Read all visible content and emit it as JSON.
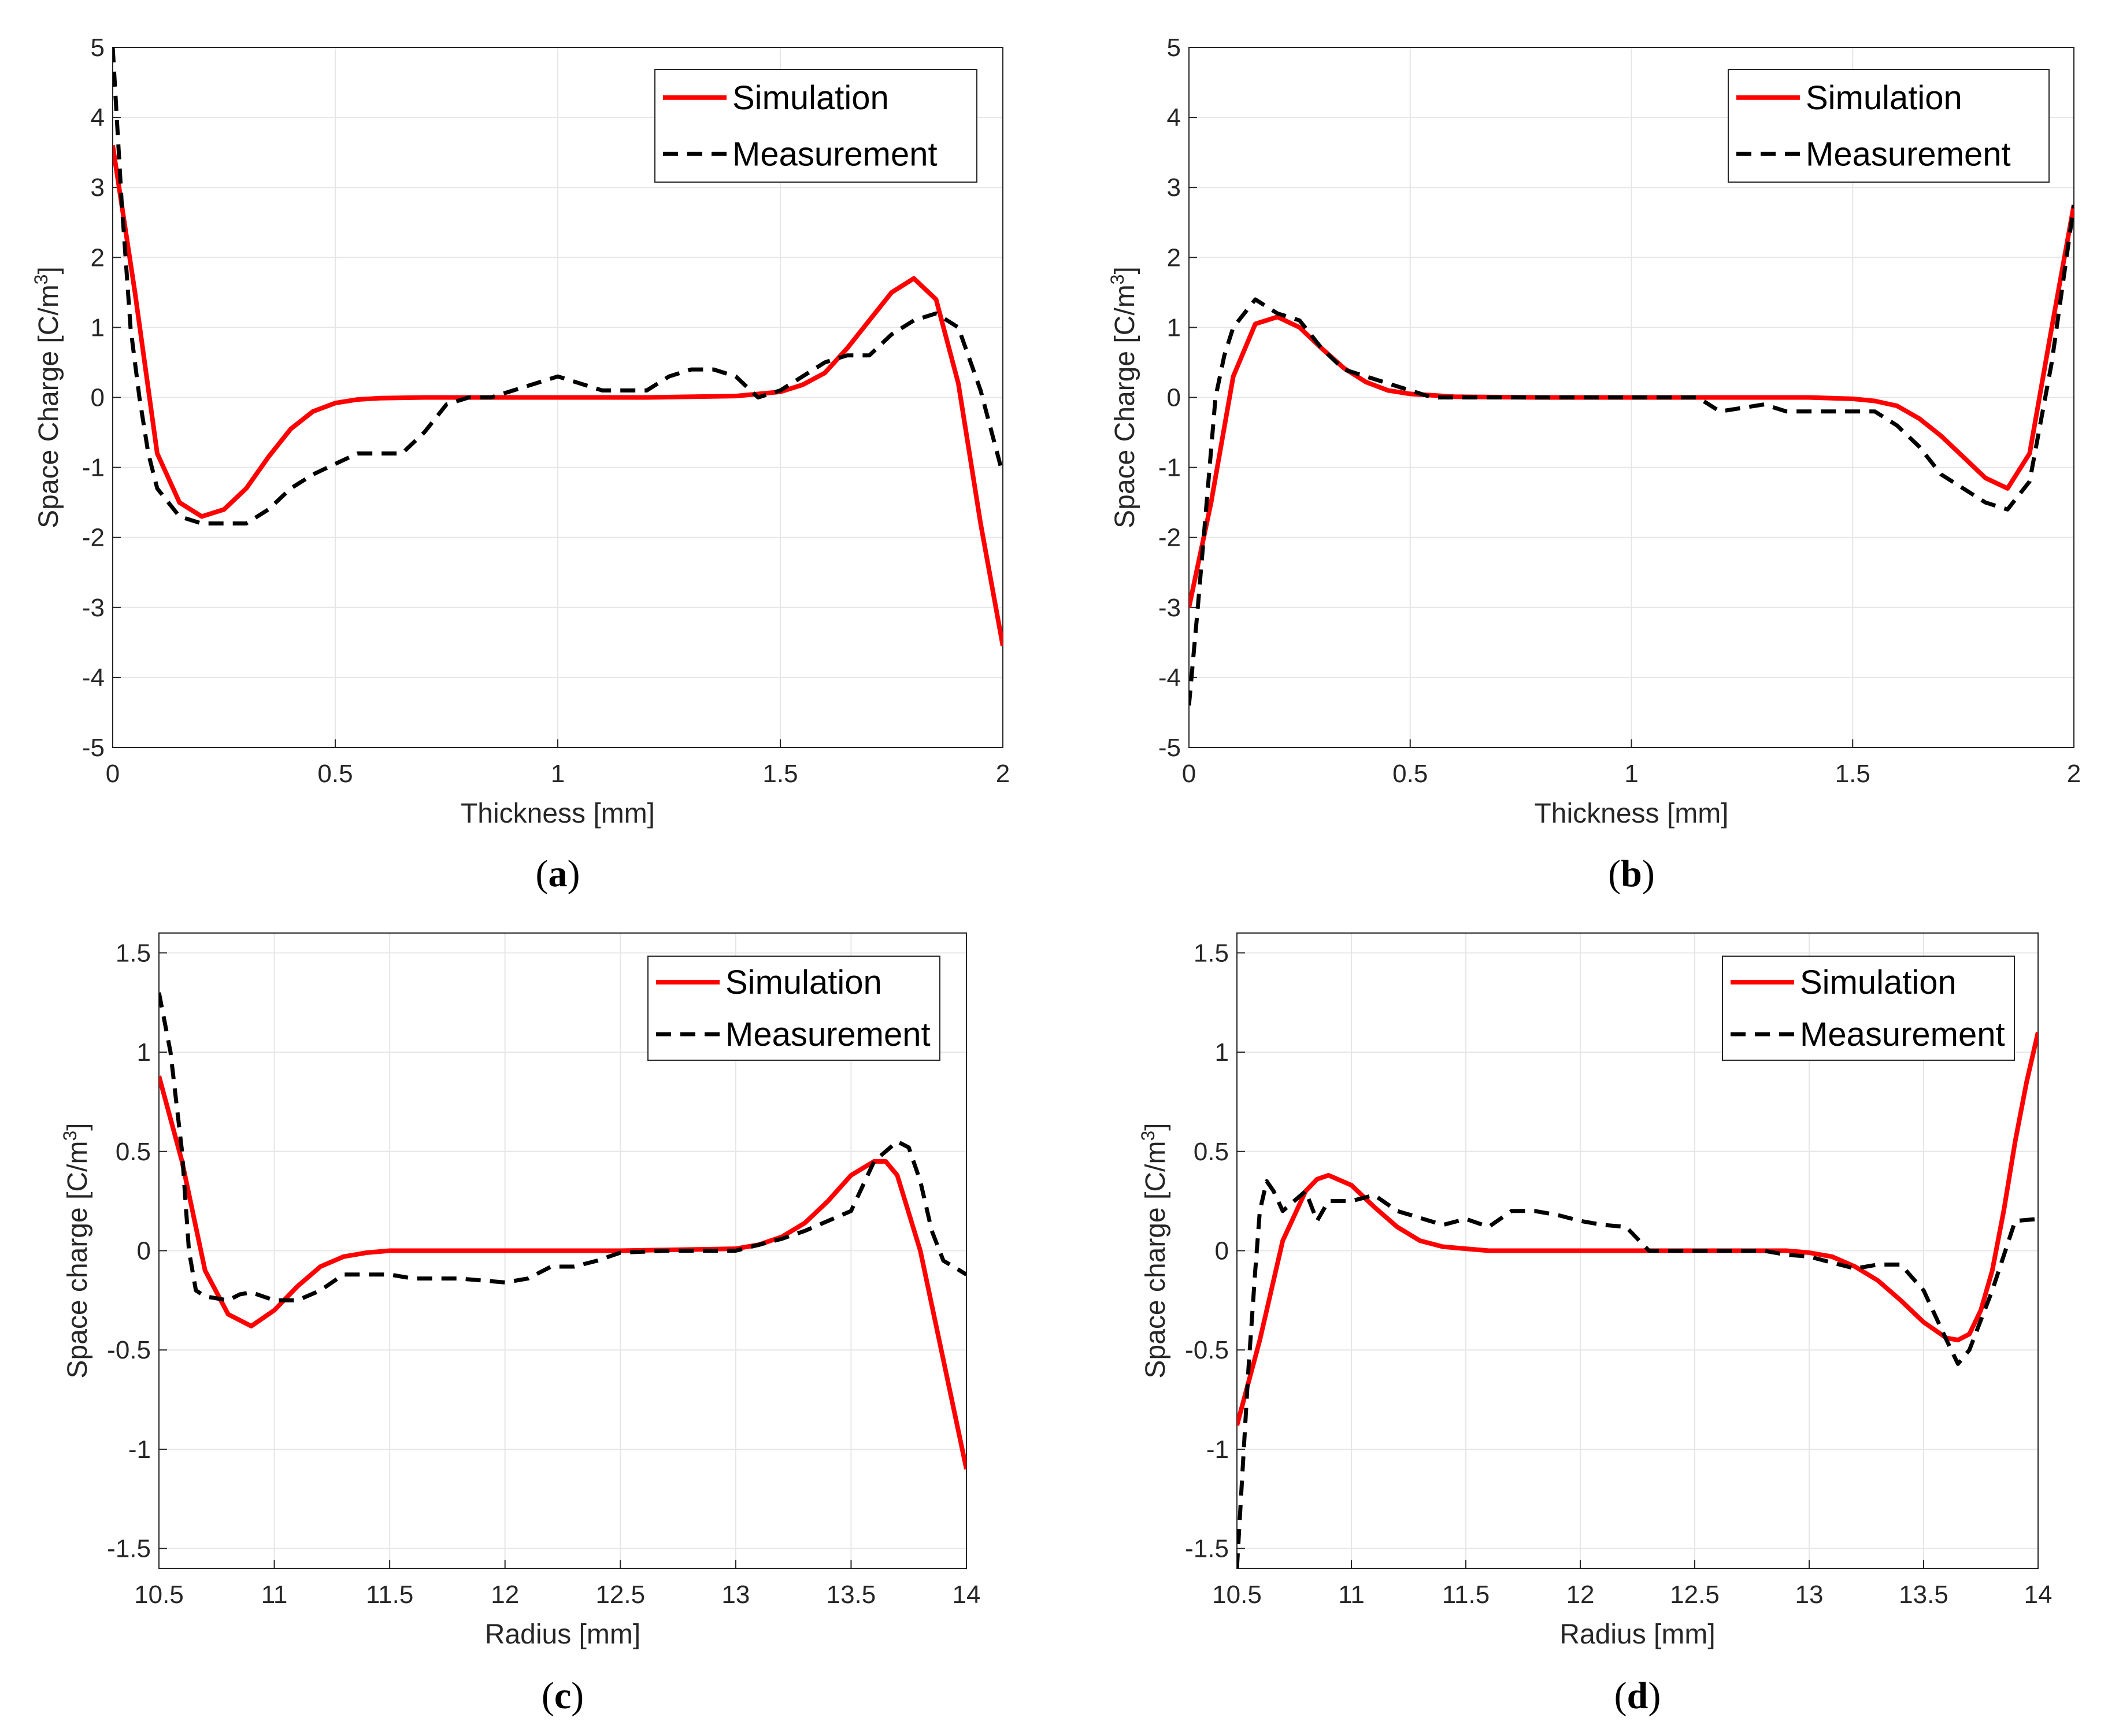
{
  "colors": {
    "simulation": "#ff0000",
    "measurement": "#000000",
    "grid": "#e6e6e6",
    "axis": "#262626"
  },
  "chart_data": [
    {
      "id": "a",
      "type": "line",
      "caption_letter": "a",
      "xlabel": "Thickness [mm]",
      "ylabel": "Space Charge [C/m",
      "ylabel_sup": "3",
      "ylabel_end": "]",
      "xlim": [
        0,
        2
      ],
      "ylim": [
        -5,
        5
      ],
      "xticks": [
        0,
        0.5,
        1,
        1.5,
        2
      ],
      "xticklabels": [
        "0",
        "0.5",
        "1",
        "1.5",
        "2"
      ],
      "yticks": [
        -5,
        -4,
        -3,
        -2,
        -1,
        0,
        1,
        2,
        3,
        4,
        5
      ],
      "yticklabels": [
        "-5",
        "-4",
        "-3",
        "-2",
        "-1",
        "0",
        "1",
        "2",
        "3",
        "4",
        "5"
      ],
      "legend": [
        "Simulation",
        "Measurement"
      ],
      "series": [
        {
          "name": "Simulation",
          "style": "solid",
          "x": [
            0,
            0.05,
            0.1,
            0.15,
            0.2,
            0.25,
            0.3,
            0.35,
            0.4,
            0.45,
            0.5,
            0.55,
            0.6,
            0.7,
            0.8,
            1.0,
            1.2,
            1.4,
            1.5,
            1.55,
            1.6,
            1.65,
            1.7,
            1.75,
            1.8,
            1.85,
            1.9,
            1.95,
            2.0
          ],
          "y": [
            3.6,
            1.5,
            -0.8,
            -1.5,
            -1.7,
            -1.6,
            -1.3,
            -0.85,
            -0.45,
            -0.2,
            -0.08,
            -0.03,
            -0.01,
            0,
            0,
            0,
            0,
            0.02,
            0.08,
            0.18,
            0.35,
            0.7,
            1.1,
            1.5,
            1.7,
            1.4,
            0.2,
            -1.8,
            -3.55
          ]
        },
        {
          "name": "Measurement",
          "style": "dashed",
          "x": [
            0,
            0.02,
            0.04,
            0.06,
            0.08,
            0.1,
            0.15,
            0.2,
            0.25,
            0.3,
            0.35,
            0.4,
            0.45,
            0.5,
            0.55,
            0.6,
            0.65,
            0.7,
            0.75,
            0.8,
            0.85,
            0.9,
            0.95,
            1.0,
            1.05,
            1.1,
            1.2,
            1.25,
            1.3,
            1.35,
            1.4,
            1.45,
            1.5,
            1.55,
            1.6,
            1.65,
            1.7,
            1.75,
            1.8,
            1.85,
            1.9,
            1.95,
            2.0
          ],
          "y": [
            5.0,
            2.8,
            1.0,
            0.0,
            -0.8,
            -1.3,
            -1.7,
            -1.8,
            -1.8,
            -1.8,
            -1.6,
            -1.3,
            -1.1,
            -0.95,
            -0.8,
            -0.8,
            -0.8,
            -0.5,
            -0.1,
            0.0,
            0.0,
            0.1,
            0.2,
            0.3,
            0.2,
            0.1,
            0.1,
            0.3,
            0.4,
            0.4,
            0.3,
            0.0,
            0.1,
            0.3,
            0.5,
            0.6,
            0.6,
            0.9,
            1.1,
            1.2,
            1.0,
            0.1,
            -1.1
          ]
        }
      ]
    },
    {
      "id": "b",
      "type": "line",
      "caption_letter": "b",
      "xlabel": "Thickness [mm]",
      "ylabel": "Space Charge [C/m",
      "ylabel_sup": "3",
      "ylabel_end": "]",
      "xlim": [
        0,
        2
      ],
      "ylim": [
        -5,
        5
      ],
      "xticks": [
        0,
        0.5,
        1,
        1.5,
        2
      ],
      "xticklabels": [
        "0",
        "0.5",
        "1",
        "1.5",
        "2"
      ],
      "yticks": [
        -5,
        -4,
        -3,
        -2,
        -1,
        0,
        1,
        2,
        3,
        4,
        5
      ],
      "yticklabels": [
        "-5",
        "-4",
        "-3",
        "-2",
        "-1",
        "0",
        "1",
        "2",
        "3",
        "4",
        "5"
      ],
      "legend": [
        "Simulation",
        "Measurement"
      ],
      "series": [
        {
          "name": "Simulation",
          "style": "solid",
          "x": [
            0,
            0.05,
            0.1,
            0.15,
            0.2,
            0.25,
            0.3,
            0.35,
            0.4,
            0.45,
            0.5,
            0.6,
            0.8,
            1.0,
            1.2,
            1.4,
            1.5,
            1.55,
            1.6,
            1.65,
            1.7,
            1.75,
            1.8,
            1.85,
            1.9,
            1.95,
            2.0
          ],
          "y": [
            -3.0,
            -1.5,
            0.3,
            1.05,
            1.15,
            1.0,
            0.7,
            0.42,
            0.22,
            0.1,
            0.05,
            0.01,
            0,
            0,
            0,
            0,
            -0.02,
            -0.05,
            -0.12,
            -0.3,
            -0.55,
            -0.85,
            -1.15,
            -1.3,
            -0.8,
            1.0,
            2.75
          ]
        },
        {
          "name": "Measurement",
          "style": "dashed",
          "x": [
            0,
            0.02,
            0.04,
            0.06,
            0.08,
            0.1,
            0.15,
            0.2,
            0.25,
            0.3,
            0.35,
            0.4,
            0.45,
            0.5,
            0.55,
            0.6,
            0.7,
            0.8,
            1.0,
            1.15,
            1.2,
            1.3,
            1.35,
            1.55,
            1.6,
            1.65,
            1.7,
            1.75,
            1.8,
            1.85,
            1.9,
            1.95,
            2.0
          ],
          "y": [
            -4.4,
            -3.0,
            -1.5,
            0.0,
            0.6,
            1.0,
            1.4,
            1.2,
            1.1,
            0.7,
            0.4,
            0.3,
            0.2,
            0.1,
            0.0,
            0.0,
            0.0,
            0.0,
            0.0,
            0.0,
            -0.2,
            -0.1,
            -0.2,
            -0.2,
            -0.4,
            -0.7,
            -1.1,
            -1.3,
            -1.5,
            -1.6,
            -1.2,
            0.5,
            2.75
          ]
        }
      ]
    },
    {
      "id": "c",
      "type": "line",
      "caption_letter": "c",
      "xlabel": "Radius [mm]",
      "ylabel": "Space charge [C/m",
      "ylabel_sup": "3",
      "ylabel_end": "]",
      "xlim": [
        10.5,
        14
      ],
      "ylim": [
        -1.6,
        1.6
      ],
      "xticks": [
        10.5,
        11,
        11.5,
        12,
        12.5,
        13,
        13.5,
        14
      ],
      "xticklabels": [
        "10.5",
        "11",
        "11.5",
        "12",
        "12.5",
        "13",
        "13.5",
        "14"
      ],
      "yticks": [
        -1.5,
        -1,
        -0.5,
        0,
        0.5,
        1,
        1.5
      ],
      "yticklabels": [
        "-1.5",
        "-1",
        "-0.5",
        "0",
        "0.5",
        "1",
        "1.5"
      ],
      "legend": [
        "Simulation",
        "Measurement"
      ],
      "series": [
        {
          "name": "Simulation",
          "style": "solid",
          "x": [
            10.5,
            10.6,
            10.7,
            10.8,
            10.9,
            11.0,
            11.1,
            11.2,
            11.3,
            11.4,
            11.5,
            11.6,
            11.8,
            12.0,
            12.5,
            13.0,
            13.1,
            13.2,
            13.3,
            13.4,
            13.5,
            13.6,
            13.65,
            13.7,
            13.8,
            13.9,
            14.0
          ],
          "y": [
            0.88,
            0.45,
            -0.1,
            -0.32,
            -0.38,
            -0.3,
            -0.18,
            -0.08,
            -0.03,
            -0.01,
            0,
            0,
            0,
            0,
            0,
            0.01,
            0.03,
            0.07,
            0.14,
            0.25,
            0.38,
            0.45,
            0.45,
            0.38,
            0.0,
            -0.55,
            -1.1
          ]
        },
        {
          "name": "Measurement",
          "style": "dashed",
          "x": [
            10.5,
            10.55,
            10.6,
            10.63,
            10.66,
            10.7,
            10.8,
            10.85,
            10.9,
            11.0,
            11.1,
            11.2,
            11.3,
            11.4,
            11.5,
            11.6,
            11.8,
            12.0,
            12.1,
            12.2,
            12.3,
            12.4,
            12.5,
            12.7,
            13.0,
            13.2,
            13.3,
            13.5,
            13.6,
            13.7,
            13.75,
            13.8,
            13.85,
            13.9,
            14.0
          ],
          "y": [
            1.3,
            1.0,
            0.5,
            0.0,
            -0.2,
            -0.23,
            -0.25,
            -0.22,
            -0.21,
            -0.25,
            -0.25,
            -0.2,
            -0.12,
            -0.12,
            -0.12,
            -0.14,
            -0.14,
            -0.16,
            -0.14,
            -0.08,
            -0.08,
            -0.05,
            -0.01,
            0.0,
            0.0,
            0.06,
            0.1,
            0.2,
            0.45,
            0.55,
            0.52,
            0.35,
            0.1,
            -0.05,
            -0.12
          ]
        }
      ]
    },
    {
      "id": "d",
      "type": "line",
      "caption_letter": "d",
      "xlabel": "Radius [mm]",
      "ylabel": "Space charge [C/m",
      "ylabel_sup": "3",
      "ylabel_end": "]",
      "xlim": [
        10.5,
        14
      ],
      "ylim": [
        -1.6,
        1.6
      ],
      "xticks": [
        10.5,
        11,
        11.5,
        12,
        12.5,
        13,
        13.5,
        14
      ],
      "xticklabels": [
        "10.5",
        "11",
        "11.5",
        "12",
        "12.5",
        "13",
        "13.5",
        "14"
      ],
      "yticks": [
        -1.5,
        -1,
        -0.5,
        0,
        0.5,
        1,
        1.5
      ],
      "yticklabels": [
        "-1.5",
        "-1",
        "-0.5",
        "0",
        "0.5",
        "1",
        "1.5"
      ],
      "legend": [
        "Simulation",
        "Measurement"
      ],
      "series": [
        {
          "name": "Simulation",
          "style": "solid",
          "x": [
            10.5,
            10.6,
            10.7,
            10.8,
            10.85,
            10.9,
            11.0,
            11.1,
            11.2,
            11.3,
            11.4,
            11.5,
            11.6,
            11.8,
            12.0,
            12.5,
            12.9,
            13.0,
            13.1,
            13.2,
            13.3,
            13.4,
            13.5,
            13.6,
            13.65,
            13.7,
            13.75,
            13.8,
            13.85,
            13.9,
            13.95,
            14.0
          ],
          "y": [
            -0.88,
            -0.45,
            0.05,
            0.3,
            0.36,
            0.38,
            0.33,
            0.22,
            0.12,
            0.05,
            0.02,
            0.01,
            0,
            0,
            0,
            0,
            0,
            -0.01,
            -0.03,
            -0.08,
            -0.15,
            -0.25,
            -0.36,
            -0.44,
            -0.45,
            -0.42,
            -0.3,
            -0.1,
            0.2,
            0.55,
            0.85,
            1.1
          ]
        },
        {
          "name": "Measurement",
          "style": "dashed",
          "x": [
            10.5,
            10.52,
            10.55,
            10.58,
            10.6,
            10.63,
            10.66,
            10.7,
            10.8,
            10.85,
            10.9,
            11.0,
            11.1,
            11.2,
            11.4,
            11.5,
            11.6,
            11.7,
            11.8,
            11.9,
            12.0,
            12.1,
            12.2,
            12.3,
            12.4,
            12.6,
            12.8,
            12.9,
            13.0,
            13.2,
            13.3,
            13.4,
            13.5,
            13.6,
            13.65,
            13.7,
            13.8,
            13.9,
            14.0
          ],
          "y": [
            -1.6,
            -1.2,
            -0.6,
            -0.1,
            0.2,
            0.35,
            0.3,
            0.2,
            0.3,
            0.15,
            0.25,
            0.25,
            0.28,
            0.2,
            0.13,
            0.16,
            0.12,
            0.2,
            0.2,
            0.18,
            0.15,
            0.13,
            0.12,
            0.0,
            0.0,
            0.0,
            0.0,
            -0.02,
            -0.03,
            -0.09,
            -0.07,
            -0.07,
            -0.2,
            -0.45,
            -0.57,
            -0.5,
            -0.2,
            0.15,
            0.16
          ]
        }
      ]
    }
  ]
}
